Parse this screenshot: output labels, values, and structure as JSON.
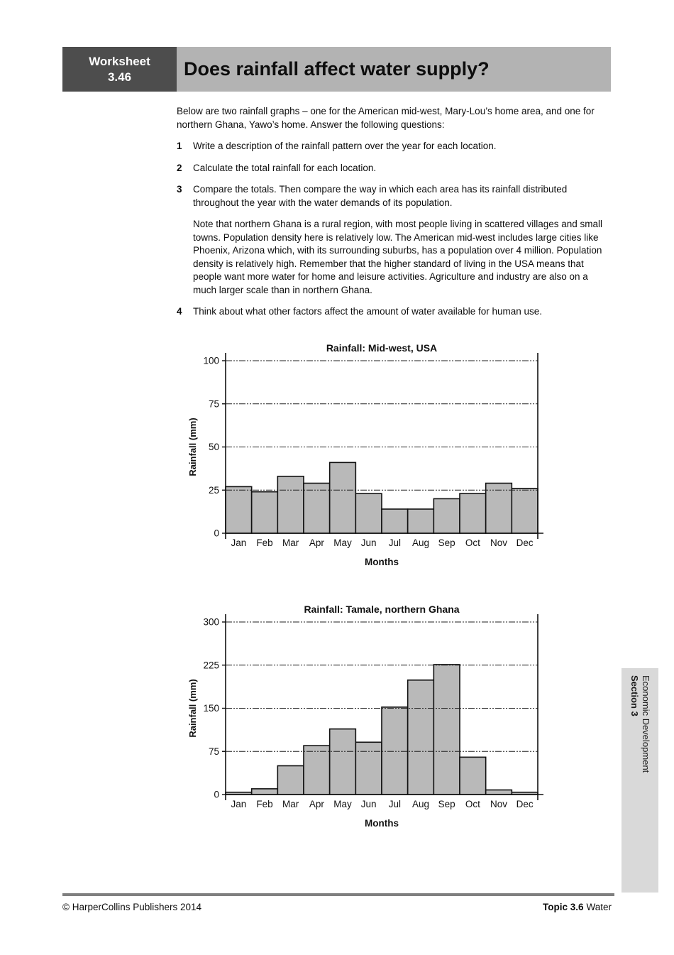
{
  "header": {
    "worksheet_label": "Worksheet",
    "worksheet_number": "3.46",
    "title": "Does rainfall affect water supply?"
  },
  "intro": "Below are two rainfall graphs – one for the American mid-west, Mary-Lou’s home area, and one for northern Ghana, Yawo’s home. Answer the following questions:",
  "questions": [
    {
      "number": "1",
      "text": "Write a description of the rainfall pattern over the year for each location."
    },
    {
      "number": "2",
      "text": "Calculate the total rainfall for each location."
    },
    {
      "number": "3",
      "text": "Compare the totals. Then compare the way in which each area has its rainfall distributed throughout the year with the water demands of its population."
    },
    {
      "number": "4",
      "text": "Think about what other factors affect the amount of water available for human use."
    }
  ],
  "note": "Note that northern Ghana is a rural region, with most people living in scattered villages and small towns. Population density here is relatively low. The American mid-west includes large cities like Phoenix, Arizona which, with its surrounding suburbs, has a population over 4 million. Population density is relatively high. Remember that the higher standard of living in the USA means that people want more water for home and leisure activities. Agriculture and industry are also on a much larger scale than in northern Ghana.",
  "chart_data": [
    {
      "type": "bar",
      "id": "usa",
      "title": "Rainfall: Mid-west, USA",
      "xlabel": "Months",
      "ylabel": "Rainfall (mm)",
      "categories": [
        "Jan",
        "Feb",
        "Mar",
        "Apr",
        "May",
        "Jun",
        "Jul",
        "Aug",
        "Sep",
        "Oct",
        "Nov",
        "Dec"
      ],
      "values": [
        27,
        24,
        33,
        29,
        41,
        23,
        14,
        14,
        20,
        23,
        29,
        26
      ],
      "ylim": [
        0,
        100
      ],
      "yticks": [
        0,
        25,
        50,
        75,
        100
      ],
      "grid": "horizontal dash-dot",
      "legend": "none",
      "bar_color": "#b9b9b9",
      "bar_border": "#111111"
    },
    {
      "type": "bar",
      "id": "ghana",
      "title": "Rainfall: Tamale, northern Ghana",
      "xlabel": "Months",
      "ylabel": "Rainfall (mm)",
      "categories": [
        "Jan",
        "Feb",
        "Mar",
        "Apr",
        "May",
        "Jun",
        "Jul",
        "Aug",
        "Sep",
        "Oct",
        "Nov",
        "Dec"
      ],
      "values": [
        4,
        10,
        50,
        85,
        114,
        91,
        152,
        199,
        226,
        65,
        8,
        4
      ],
      "ylim": [
        0,
        300
      ],
      "yticks": [
        0,
        75,
        150,
        225,
        300
      ],
      "grid": "horizontal dash-dot",
      "legend": "none",
      "bar_color": "#b9b9b9",
      "bar_border": "#111111"
    }
  ],
  "sidebar": {
    "section": "Section 3",
    "subtitle": "Economic Development"
  },
  "footer": {
    "copyright": "© HarperCollins Publishers 2014",
    "topic_bold": "Topic 3.6",
    "topic_rest": "Water"
  },
  "colors": {
    "header_box": "#4d4d4d",
    "header_bar": "#b3b3b3",
    "bar_fill": "#b9b9b9",
    "side_tab": "#d9d9d9",
    "footer_rule": "#7f7f7f"
  }
}
